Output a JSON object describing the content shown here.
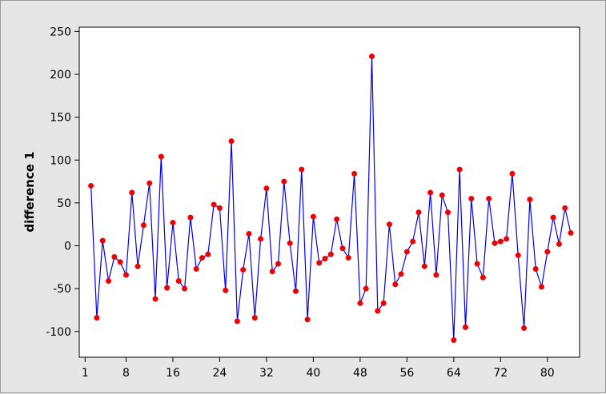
{
  "chart_data": {
    "type": "line",
    "xlabel": "",
    "ylabel": "difference 1",
    "xlim": [
      0,
      85.5
    ],
    "ylim": [
      -130,
      255
    ],
    "x_ticks": [
      1,
      8,
      16,
      24,
      32,
      40,
      48,
      56,
      64,
      72,
      80
    ],
    "x_tick_labels": [
      "1",
      "8",
      "16",
      "24",
      "32",
      "40",
      "48",
      "56",
      "64",
      "72",
      "80"
    ],
    "y_ticks": [
      -100,
      -50,
      0,
      50,
      100,
      150,
      200,
      250
    ],
    "y_tick_labels": [
      "-100",
      "-50",
      "0",
      "50",
      "100",
      "150",
      "200",
      "250"
    ],
    "grid": false,
    "series": [
      {
        "line_color": "#0000ee",
        "marker_color": "#ee0000",
        "x": [
          2,
          3,
          4,
          5,
          6,
          7,
          8,
          9,
          10,
          11,
          12,
          13,
          14,
          15,
          16,
          17,
          18,
          19,
          20,
          21,
          22,
          23,
          24,
          25,
          26,
          27,
          28,
          29,
          30,
          31,
          32,
          33,
          34,
          35,
          36,
          37,
          38,
          39,
          40,
          41,
          42,
          43,
          44,
          45,
          46,
          47,
          48,
          49,
          50,
          51,
          52,
          53,
          54,
          55,
          56,
          57,
          58,
          59,
          60,
          61,
          62,
          63,
          64,
          65,
          66,
          67,
          68,
          69,
          70,
          71,
          72,
          73,
          74,
          75,
          76,
          77,
          78,
          79,
          80,
          81,
          82,
          83,
          84
        ],
        "y": [
          70,
          -84,
          6,
          -41,
          -13,
          -19,
          -34,
          62,
          -24,
          24,
          73,
          -62,
          104,
          -49,
          27,
          -41,
          -50,
          33,
          -27,
          -14,
          -10,
          48,
          44,
          -52,
          122,
          -88,
          -28,
          14,
          -84,
          8,
          67,
          -30,
          -21,
          75,
          3,
          -53,
          89,
          -86,
          34,
          -20,
          -15,
          -10,
          31,
          -3,
          -14,
          84,
          -67,
          -50,
          221,
          -76,
          -67,
          25,
          -45,
          -33,
          -7,
          5,
          39,
          -24,
          62,
          -34,
          59,
          39,
          -110,
          89,
          -95,
          55,
          -21,
          -37,
          55,
          3,
          5,
          8,
          84,
          -11,
          -96,
          54,
          -27,
          -48,
          -7,
          33,
          2,
          44,
          15
        ]
      }
    ]
  }
}
